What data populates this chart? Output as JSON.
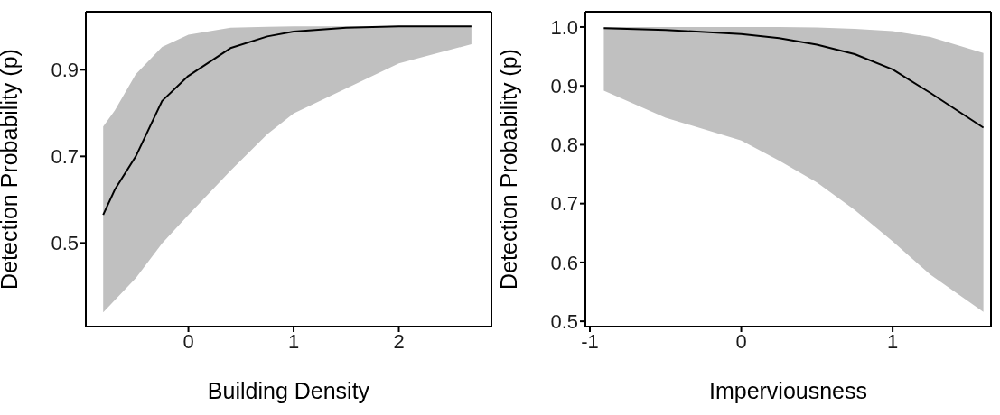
{
  "chart_data": [
    {
      "type": "line",
      "xlabel": "Building Density",
      "ylabel": "Detection Probability (p)",
      "x": [
        -0.81,
        -0.7,
        -0.5,
        -0.25,
        0,
        0.4,
        0.75,
        1,
        1.5,
        2,
        2.69
      ],
      "xlim": [
        -0.975,
        2.88
      ],
      "xticks": [
        0,
        1,
        2
      ],
      "ylim": [
        0.307,
        1.034
      ],
      "yticks": [
        0.5,
        0.7,
        0.9
      ],
      "series": [
        {
          "color": "#000000",
          "values": [
            0.565,
            0.623,
            0.7,
            0.828,
            0.886,
            0.95,
            0.977,
            0.988,
            0.997,
            1.0,
            1.0
          ],
          "lower": [
            0.34,
            0.368,
            0.419,
            0.499,
            0.565,
            0.667,
            0.751,
            0.799,
            0.857,
            0.915,
            0.959
          ],
          "upper": [
            0.769,
            0.806,
            0.89,
            0.953,
            0.981,
            0.997,
            0.999,
            1.0,
            1.0,
            1.0,
            1.0
          ]
        }
      ]
    },
    {
      "type": "line",
      "xlabel": "Imperviousness",
      "ylabel": "Detection Probability (p)",
      "x": [
        -0.908,
        -0.5,
        0,
        0.25,
        0.5,
        0.75,
        1,
        1.25,
        1.6
      ],
      "xlim": [
        -1.03,
        1.65
      ],
      "xticks": [
        -1,
        0,
        1
      ],
      "ylim": [
        0.491,
        1.026
      ],
      "yticks": [
        0.5,
        0.6,
        0.7,
        0.8,
        0.9,
        {
          "value": 1,
          "label": "1.0"
        }
      ],
      "series": [
        {
          "color": "#000000",
          "values": [
            0.998,
            0.995,
            0.988,
            0.981,
            0.97,
            0.954,
            0.928,
            0.888,
            0.829
          ],
          "lower": [
            0.892,
            0.846,
            0.807,
            0.773,
            0.736,
            0.689,
            0.636,
            0.579,
            0.516
          ],
          "upper": [
            1.0,
            1.0,
            1.0,
            1.0,
            0.999,
            0.997,
            0.993,
            0.983,
            0.956
          ]
        }
      ]
    }
  ]
}
